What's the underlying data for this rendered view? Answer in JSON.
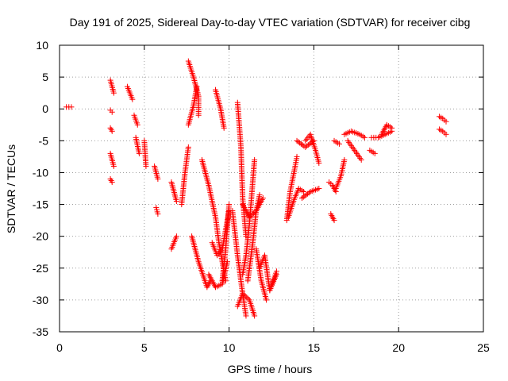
{
  "chart_data": {
    "type": "scatter",
    "title": "Day 191 of 2025, Sidereal Day-to-day VTEC variation (SDTVAR) for receiver cibg",
    "xlabel": "GPS time / hours",
    "ylabel": "SDTVAR / TECUs",
    "xlim": [
      0,
      25
    ],
    "ylim": [
      -35,
      10
    ],
    "xticks": [
      0,
      5,
      10,
      15,
      20,
      25
    ],
    "yticks": [
      10,
      5,
      0,
      -5,
      -10,
      -15,
      -20,
      -25,
      -30,
      -35
    ],
    "grid": true,
    "marker": "+",
    "color": "#ff0000",
    "series": [
      {
        "name": "t0_5",
        "x": [
          0.4,
          0.7
        ],
        "y": [
          0.3,
          0.3
        ]
      },
      {
        "name": "t3_0a",
        "x": [
          3.0,
          3.2
        ],
        "y": [
          4.5,
          2.5
        ]
      },
      {
        "name": "t3_0b",
        "x": [
          3.0,
          3.1
        ],
        "y": [
          -0.2,
          -0.5
        ]
      },
      {
        "name": "t3_0c",
        "x": [
          3.0,
          3.1
        ],
        "y": [
          -3.0,
          -3.5
        ]
      },
      {
        "name": "t3_0d",
        "x": [
          3.0,
          3.2
        ],
        "y": [
          -7.0,
          -9.0
        ]
      },
      {
        "name": "t3_0e",
        "x": [
          3.0,
          3.1
        ],
        "y": [
          -11.0,
          -11.5
        ]
      },
      {
        "name": "t4_1",
        "x": [
          4.0,
          4.3
        ],
        "y": [
          3.5,
          1.5
        ]
      },
      {
        "name": "t4_5a",
        "x": [
          4.4,
          4.6
        ],
        "y": [
          -1.0,
          -2.5
        ]
      },
      {
        "name": "t4_5b",
        "x": [
          4.5,
          4.7
        ],
        "y": [
          -4.5,
          -7.0
        ]
      },
      {
        "name": "t5_1",
        "x": [
          5.0,
          5.1
        ],
        "y": [
          -5.0,
          -9.0
        ]
      },
      {
        "name": "t5_7a",
        "x": [
          5.6,
          5.8
        ],
        "y": [
          -9.0,
          -11.0
        ]
      },
      {
        "name": "t5_7b",
        "x": [
          5.7,
          5.8
        ],
        "y": [
          -15.5,
          -16.5
        ]
      },
      {
        "name": "t6_7a",
        "x": [
          6.6,
          6.9
        ],
        "y": [
          -11.5,
          -14.5
        ]
      },
      {
        "name": "t6_7b",
        "x": [
          6.6,
          6.9
        ],
        "y": [
          -22.0,
          -20.0
        ]
      },
      {
        "name": "t7_3",
        "x": [
          7.2,
          7.4,
          7.6
        ],
        "y": [
          -15.0,
          -10.0,
          -6.0
        ]
      },
      {
        "name": "t7_7a",
        "x": [
          7.6,
          7.9,
          8.2,
          8.2
        ],
        "y": [
          7.5,
          5.0,
          2.0,
          -1.0
        ]
      },
      {
        "name": "t7_7b",
        "x": [
          7.6,
          7.9,
          8.1
        ],
        "y": [
          -2.5,
          0.5,
          3.5
        ]
      },
      {
        "name": "t7_9",
        "x": [
          7.8,
          8.2,
          8.7,
          8.9
        ],
        "y": [
          -20.0,
          -24.0,
          -28.0,
          -27.0
        ]
      },
      {
        "name": "t8_5",
        "x": [
          8.4,
          8.8,
          9.2,
          9.4,
          9.6,
          9.8
        ],
        "y": [
          -8.0,
          -12.0,
          -17.0,
          -21.0,
          -24.0,
          -27.0
        ]
      },
      {
        "name": "t8_8",
        "x": [
          8.8,
          9.2,
          9.6,
          9.9
        ],
        "y": [
          -26.0,
          -28.0,
          -27.5,
          -24.0
        ]
      },
      {
        "name": "t9_5a",
        "x": [
          9.0,
          9.3,
          9.6,
          10.0
        ],
        "y": [
          -21.0,
          -23.0,
          -22.0,
          -16.0
        ]
      },
      {
        "name": "t9_2",
        "x": [
          9.2,
          9.5,
          9.7
        ],
        "y": [
          3.0,
          0.0,
          -3.0
        ]
      },
      {
        "name": "t9_8",
        "x": [
          9.6,
          9.8,
          10.0
        ],
        "y": [
          -27.0,
          -22.0,
          -15.0
        ]
      },
      {
        "name": "t10_6",
        "x": [
          10.5,
          10.7,
          10.8,
          11.0
        ],
        "y": [
          1.0,
          -6.0,
          -14.0,
          -20.0
        ]
      },
      {
        "name": "t10_3",
        "x": [
          10.2,
          10.5,
          10.8,
          11.0
        ],
        "y": [
          -16.0,
          -23.0,
          -29.0,
          -32.5
        ]
      },
      {
        "name": "t10_6b",
        "x": [
          10.5,
          10.8,
          11.2,
          11.5
        ],
        "y": [
          -31.0,
          -29.0,
          -30.0,
          -32.5
        ]
      },
      {
        "name": "t11_0a",
        "x": [
          10.8,
          11.2,
          11.6,
          12.0
        ],
        "y": [
          -15.0,
          -17.0,
          -16.0,
          -14.0
        ]
      },
      {
        "name": "t11_0b",
        "x": [
          10.8,
          11.0,
          11.2,
          11.5
        ],
        "y": [
          -26.0,
          -23.0,
          -18.0,
          -8.0
        ]
      },
      {
        "name": "t11_3",
        "x": [
          11.1,
          11.4,
          11.6,
          11.8
        ],
        "y": [
          -27.0,
          -21.0,
          -16.0,
          -13.5
        ]
      },
      {
        "name": "t11_8",
        "x": [
          11.6,
          11.9,
          12.2
        ],
        "y": [
          -22.0,
          -27.0,
          -30.0
        ]
      },
      {
        "name": "t12_0",
        "x": [
          11.8,
          12.1,
          12.4,
          12.8
        ],
        "y": [
          -25.0,
          -23.0,
          -28.5,
          -26.0
        ]
      },
      {
        "name": "t12_6",
        "x": [
          12.4,
          12.6,
          12.8
        ],
        "y": [
          -28.5,
          -27.0,
          -25.5
        ]
      },
      {
        "name": "t13_6",
        "x": [
          13.4,
          13.6,
          13.9,
          14.0
        ],
        "y": [
          -17.5,
          -13.0,
          -9.0,
          -7.5
        ]
      },
      {
        "name": "t13_8",
        "x": [
          13.5,
          13.8,
          14.1,
          14.4
        ],
        "y": [
          -17.0,
          -14.5,
          -12.5,
          -13.0
        ]
      },
      {
        "name": "t14_2",
        "x": [
          14.0,
          14.5,
          15.0
        ],
        "y": [
          -5.0,
          -6.0,
          -5.0
        ]
      },
      {
        "name": "t14_8",
        "x": [
          14.5,
          14.8,
          15.1,
          15.3
        ],
        "y": [
          -5.0,
          -4.0,
          -6.5,
          -8.5
        ]
      },
      {
        "name": "t14_5",
        "x": [
          14.3,
          14.8,
          15.3
        ],
        "y": [
          -14.0,
          -13.0,
          -12.5
        ]
      },
      {
        "name": "t16_0",
        "x": [
          15.9,
          16.1,
          16.3
        ],
        "y": [
          -11.5,
          -12.0,
          -13.0
        ]
      },
      {
        "name": "t16_1",
        "x": [
          16.0,
          16.2
        ],
        "y": [
          -16.5,
          -17.5
        ]
      },
      {
        "name": "t16_5",
        "x": [
          16.3,
          16.6,
          16.8
        ],
        "y": [
          -12.5,
          -10.5,
          -8.0
        ]
      },
      {
        "name": "t16_4",
        "x": [
          16.2,
          16.5
        ],
        "y": [
          -5.0,
          -5.5
        ]
      },
      {
        "name": "t16_9",
        "x": [
          16.8,
          17.2,
          17.7,
          18.0
        ],
        "y": [
          -4.0,
          -3.5,
          -4.0,
          -4.5
        ]
      },
      {
        "name": "t17_3",
        "x": [
          17.0,
          17.4,
          17.8
        ],
        "y": [
          -5.0,
          -6.5,
          -8.0
        ]
      },
      {
        "name": "t18_4",
        "x": [
          18.3,
          18.6
        ],
        "y": [
          -6.5,
          -7.0
        ]
      },
      {
        "name": "t18_8",
        "x": [
          18.4,
          18.8,
          19.2,
          19.6
        ],
        "y": [
          -4.5,
          -4.5,
          -4.0,
          -3.5
        ]
      },
      {
        "name": "t19_3",
        "x": [
          19.0,
          19.3,
          19.6
        ],
        "y": [
          -4.0,
          -2.5,
          -3.0
        ]
      },
      {
        "name": "t22_5a",
        "x": [
          22.4,
          22.6,
          22.8
        ],
        "y": [
          -1.2,
          -1.5,
          -2.0
        ]
      },
      {
        "name": "t22_5b",
        "x": [
          22.4,
          22.6,
          22.8
        ],
        "y": [
          -3.2,
          -3.5,
          -4.0
        ]
      }
    ]
  }
}
